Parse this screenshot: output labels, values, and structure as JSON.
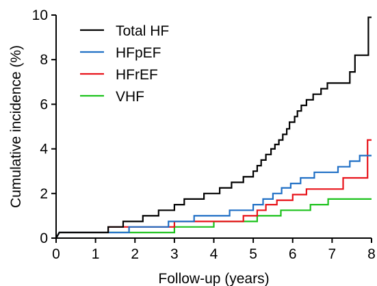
{
  "chart_data": {
    "type": "line",
    "title": "",
    "xlabel": "Follow-up (years)",
    "ylabel": "Cumulative incidence (%)",
    "xlim": [
      0,
      8
    ],
    "ylim": [
      0,
      10
    ],
    "xticks": [
      0,
      1,
      2,
      3,
      4,
      5,
      6,
      7,
      8
    ],
    "yticks": [
      0,
      2,
      4,
      6,
      8,
      10
    ],
    "grid": false,
    "legend_position": "top-left",
    "step": true,
    "series": [
      {
        "name": "Total HF",
        "color": "#000000",
        "points": [
          [
            0,
            0
          ],
          [
            0.08,
            0.25
          ],
          [
            1.32,
            0.25
          ],
          [
            1.32,
            0.5
          ],
          [
            1.7,
            0.5
          ],
          [
            1.7,
            0.75
          ],
          [
            2.2,
            0.75
          ],
          [
            2.2,
            1.0
          ],
          [
            2.6,
            1.0
          ],
          [
            2.6,
            1.25
          ],
          [
            3.0,
            1.25
          ],
          [
            3.0,
            1.5
          ],
          [
            3.25,
            1.5
          ],
          [
            3.25,
            1.75
          ],
          [
            3.75,
            1.75
          ],
          [
            3.75,
            2.0
          ],
          [
            4.15,
            2.0
          ],
          [
            4.15,
            2.25
          ],
          [
            4.45,
            2.25
          ],
          [
            4.45,
            2.5
          ],
          [
            4.75,
            2.5
          ],
          [
            4.75,
            2.75
          ],
          [
            5.0,
            2.75
          ],
          [
            5.0,
            3.0
          ],
          [
            5.1,
            3.0
          ],
          [
            5.1,
            3.25
          ],
          [
            5.2,
            3.25
          ],
          [
            5.2,
            3.5
          ],
          [
            5.32,
            3.5
          ],
          [
            5.32,
            3.75
          ],
          [
            5.45,
            3.75
          ],
          [
            5.45,
            4.0
          ],
          [
            5.55,
            4.0
          ],
          [
            5.55,
            4.2
          ],
          [
            5.65,
            4.2
          ],
          [
            5.65,
            4.4
          ],
          [
            5.75,
            4.4
          ],
          [
            5.75,
            4.65
          ],
          [
            5.85,
            4.65
          ],
          [
            5.85,
            4.9
          ],
          [
            5.92,
            4.9
          ],
          [
            5.92,
            5.2
          ],
          [
            6.05,
            5.2
          ],
          [
            6.05,
            5.45
          ],
          [
            6.12,
            5.45
          ],
          [
            6.12,
            5.7
          ],
          [
            6.22,
            5.7
          ],
          [
            6.22,
            5.95
          ],
          [
            6.35,
            5.95
          ],
          [
            6.35,
            6.2
          ],
          [
            6.52,
            6.2
          ],
          [
            6.52,
            6.45
          ],
          [
            6.72,
            6.45
          ],
          [
            6.72,
            6.7
          ],
          [
            6.88,
            6.7
          ],
          [
            6.88,
            6.95
          ],
          [
            7.45,
            6.95
          ],
          [
            7.45,
            7.45
          ],
          [
            7.58,
            7.45
          ],
          [
            7.58,
            8.2
          ],
          [
            7.92,
            8.2
          ],
          [
            7.92,
            9.9
          ],
          [
            8.0,
            9.9
          ]
        ]
      },
      {
        "name": "HFpEF",
        "color": "#1f6fc5",
        "points": [
          [
            0,
            0
          ],
          [
            0.08,
            0.25
          ],
          [
            1.85,
            0.25
          ],
          [
            1.85,
            0.5
          ],
          [
            2.85,
            0.5
          ],
          [
            2.85,
            0.75
          ],
          [
            3.5,
            0.75
          ],
          [
            3.5,
            1.0
          ],
          [
            4.4,
            1.0
          ],
          [
            4.4,
            1.25
          ],
          [
            5.0,
            1.25
          ],
          [
            5.0,
            1.5
          ],
          [
            5.25,
            1.5
          ],
          [
            5.25,
            1.75
          ],
          [
            5.5,
            1.75
          ],
          [
            5.5,
            2.0
          ],
          [
            5.72,
            2.0
          ],
          [
            5.72,
            2.25
          ],
          [
            5.95,
            2.25
          ],
          [
            5.95,
            2.45
          ],
          [
            6.2,
            2.45
          ],
          [
            6.2,
            2.7
          ],
          [
            6.55,
            2.7
          ],
          [
            6.55,
            2.95
          ],
          [
            7.15,
            2.95
          ],
          [
            7.15,
            3.2
          ],
          [
            7.45,
            3.2
          ],
          [
            7.45,
            3.45
          ],
          [
            7.7,
            3.45
          ],
          [
            7.7,
            3.7
          ],
          [
            8.0,
            3.7
          ]
        ]
      },
      {
        "name": "HFrEF",
        "color": "#e8131a",
        "points": [
          [
            0,
            0
          ],
          [
            0.08,
            0.25
          ],
          [
            1.32,
            0.25
          ],
          [
            1.32,
            0.5
          ],
          [
            3.0,
            0.5
          ],
          [
            3.0,
            0.75
          ],
          [
            4.75,
            0.75
          ],
          [
            4.75,
            1.0
          ],
          [
            5.1,
            1.0
          ],
          [
            5.1,
            1.25
          ],
          [
            5.32,
            1.25
          ],
          [
            5.32,
            1.5
          ],
          [
            5.6,
            1.5
          ],
          [
            5.6,
            1.7
          ],
          [
            6.0,
            1.7
          ],
          [
            6.0,
            1.95
          ],
          [
            6.35,
            1.95
          ],
          [
            6.35,
            2.2
          ],
          [
            7.28,
            2.2
          ],
          [
            7.28,
            2.7
          ],
          [
            7.9,
            2.7
          ],
          [
            7.9,
            4.4
          ],
          [
            8.0,
            4.4
          ]
        ]
      },
      {
        "name": "VHF",
        "color": "#1cc21c",
        "points": [
          [
            0,
            0
          ],
          [
            0.08,
            0.25
          ],
          [
            3.0,
            0.25
          ],
          [
            3.0,
            0.5
          ],
          [
            4.0,
            0.5
          ],
          [
            4.0,
            0.75
          ],
          [
            5.1,
            0.75
          ],
          [
            5.1,
            1.0
          ],
          [
            5.7,
            1.0
          ],
          [
            5.7,
            1.25
          ],
          [
            6.45,
            1.25
          ],
          [
            6.45,
            1.5
          ],
          [
            6.9,
            1.5
          ],
          [
            6.9,
            1.75
          ],
          [
            8.0,
            1.75
          ]
        ]
      }
    ]
  }
}
